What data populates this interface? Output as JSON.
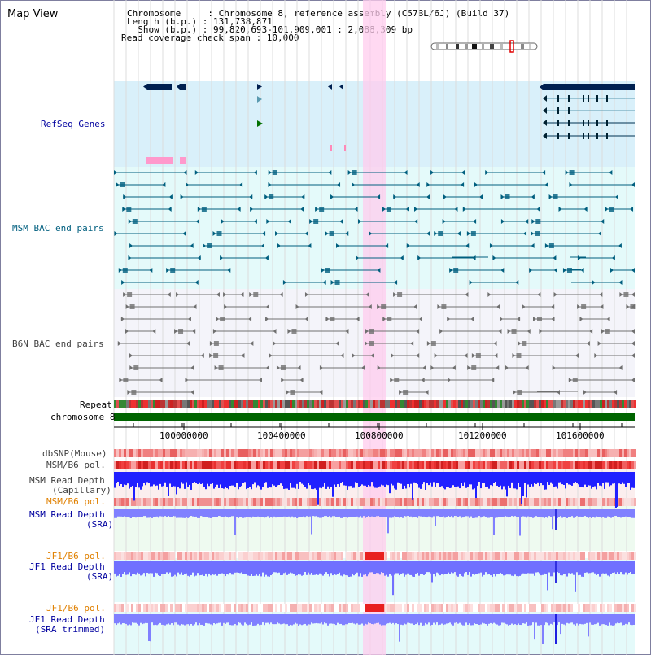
{
  "title": "Map View",
  "info": {
    "line1": "Chromosome     : Chromosome 8, reference assembly (C57BL/6J) (Build 37)",
    "line2": "Length (b.p.) : 131,738,871",
    "line3": "  Show (b.p.) : 99,820,693-101,909,001 : 2,088,309 bp",
    "line4": "Read coverage check span : 10,000"
  },
  "tracks": {
    "refseq": "RefSeq Genes",
    "msm_bac": "MSM BAC end pairs",
    "b6n_bac": "B6N BAC end pairs",
    "repeat": "Repeat",
    "chromosome": "chromosome 8",
    "dbsnp": "dbSNP(Mouse)",
    "msm_b6_pol_1": "MSM/B6 pol.",
    "msm_depth_cap_1": "MSM Read Depth",
    "msm_depth_cap_2": "(Capillary)",
    "msm_b6_pol_2": "MSM/B6 pol.",
    "msm_depth_sra_1": "MSM Read Depth",
    "msm_depth_sra_2": "(SRA)",
    "jf1_b6_pol_1": "JF1/B6 pol.",
    "jf1_depth_sra_1": "JF1 Read Depth",
    "jf1_depth_sra_2": "(SRA)",
    "jf1_b6_pol_2": "JF1/B6 pol.",
    "jf1_depth_trim_1": "JF1 Read Depth",
    "jf1_depth_trim_2": "(SRA trimmed)"
  },
  "axis": {
    "ticks": [
      "100000000",
      "100400000",
      "100800000",
      "101200000",
      "101600000"
    ]
  },
  "colors": {
    "refseq_bg": "#d9f0fa",
    "msm_bg": "#e4fafa",
    "b6n_bg": "#f4f4fa",
    "highlight": "#ffccee",
    "chromosome_bar": "#006400",
    "gene_dark": "#002050",
    "msm_feature": "#005f7f",
    "b6n_feature": "#707070",
    "depth_blue": "#3030ff",
    "pol_red": "#ff2020",
    "label_blue": "#00009f",
    "label_teal": "#005f7f",
    "label_orange": "#e08000",
    "label_gray": "#404040"
  }
}
